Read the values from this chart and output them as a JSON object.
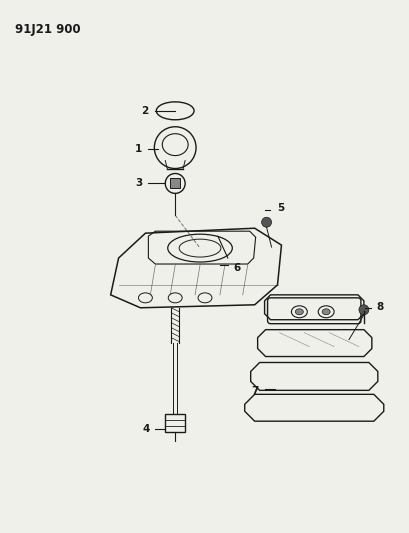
{
  "title": "91J21 900",
  "background_color": "#f0f0eb",
  "line_color": "#1a1a1a",
  "figure_width": 4.09,
  "figure_height": 5.33,
  "dpi": 100
}
